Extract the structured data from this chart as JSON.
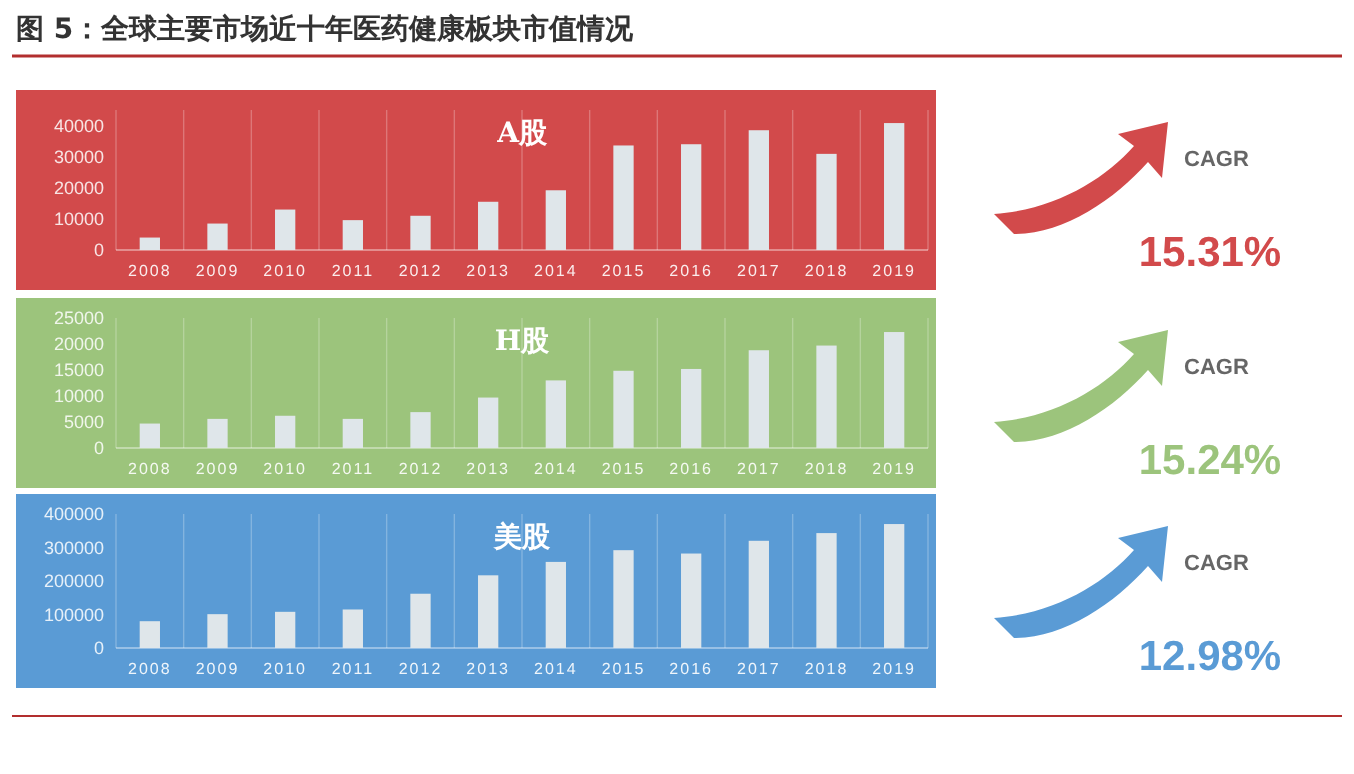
{
  "chart_data": [
    {
      "type": "other",
      "title": "图 5：全球主要市场近十年医药健康板块市值情况"
    },
    {
      "type": "bar",
      "title": "A股",
      "categories": [
        "2008",
        "2009",
        "2010",
        "2011",
        "2012",
        "2013",
        "2014",
        "2015",
        "2016",
        "2017",
        "2018",
        "2019"
      ],
      "values": [
        4000,
        8500,
        13000,
        9600,
        11000,
        15500,
        19200,
        33600,
        34000,
        38500,
        30900,
        40800
      ],
      "color": "#dfe6ea",
      "ylim": [
        0,
        45000
      ],
      "yticks": [
        0,
        10000,
        20000,
        30000,
        40000
      ],
      "grid": "x",
      "annotations": [
        "CAGR",
        "15.31%"
      ]
    },
    {
      "type": "bar",
      "title": "H股",
      "categories": [
        "2008",
        "2009",
        "2010",
        "2011",
        "2012",
        "2013",
        "2014",
        "2015",
        "2016",
        "2017",
        "2018",
        "2019"
      ],
      "values": [
        4700,
        5600,
        6200,
        5600,
        6900,
        9700,
        13000,
        14850,
        15200,
        18800,
        19700,
        22300
      ],
      "color": "#dfe6ea",
      "ylim": [
        0,
        25000
      ],
      "yticks": [
        0,
        5000,
        10000,
        15000,
        20000,
        25000
      ],
      "grid": "x",
      "annotations": [
        "CAGR",
        "15.24%"
      ]
    },
    {
      "type": "bar",
      "title": "美股",
      "categories": [
        "2008",
        "2009",
        "2010",
        "2011",
        "2012",
        "2013",
        "2014",
        "2015",
        "2016",
        "2017",
        "2018",
        "2019"
      ],
      "values": [
        80000,
        101000,
        108000,
        115000,
        162000,
        217000,
        257000,
        292000,
        282000,
        320000,
        343000,
        370000
      ],
      "color": "#dfe6ea",
      "ylim": [
        0,
        400000
      ],
      "yticks": [
        0,
        100000,
        200000,
        300000,
        400000
      ],
      "grid": "x",
      "annotations": [
        "CAGR",
        "12.98%"
      ]
    }
  ]
}
